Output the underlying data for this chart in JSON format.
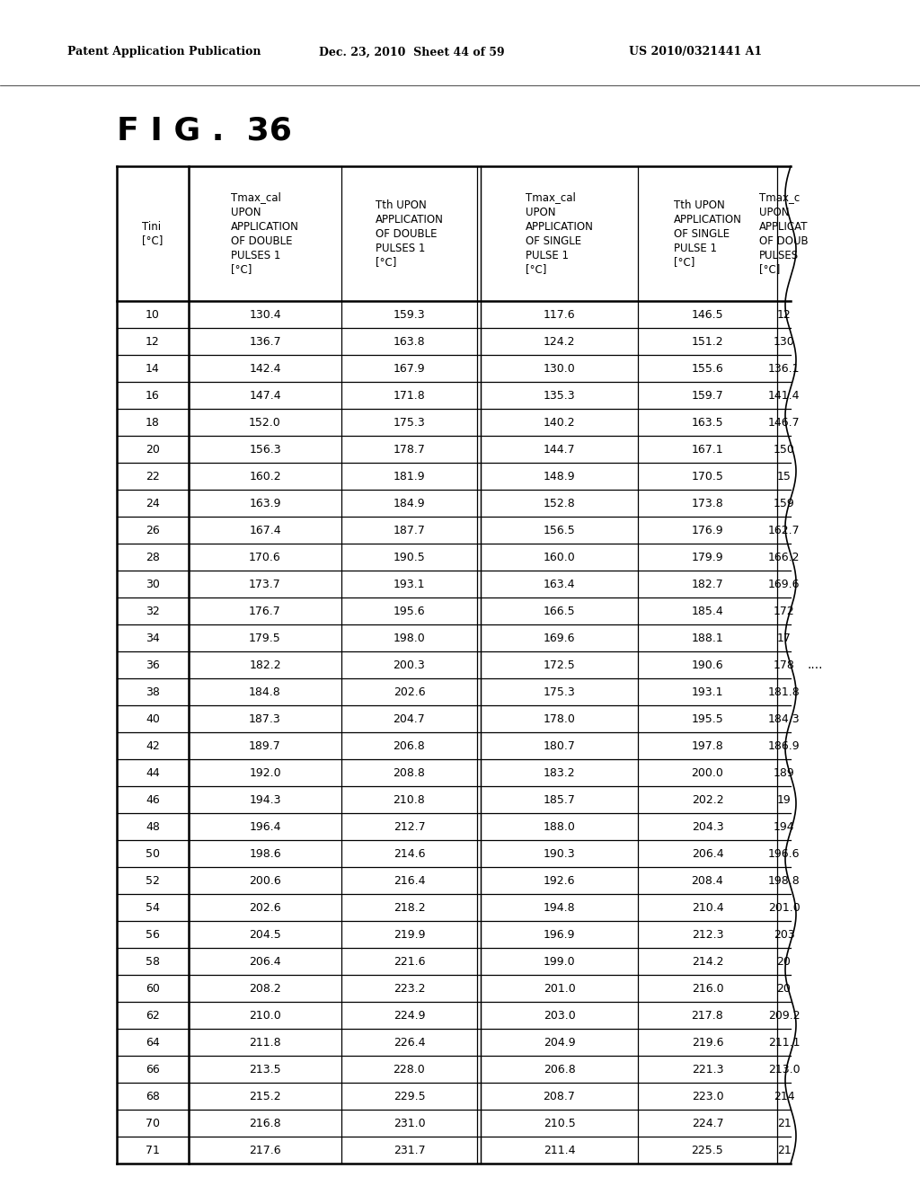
{
  "header_line1": "Patent Application Publication",
  "header_date": "Dec. 23, 2010  Sheet 44 of 59",
  "header_patent": "US 2010/0321441 A1",
  "figure_title": "F I G .  36",
  "col_headers": [
    "Tini\n[°C]",
    "Tmax_cal\nUPON\nAPPLICATION\nOF DOUBLE\nPULSES 1\n[°C]",
    "Tth UPON\nAPPLICATION\nOF DOUBLE\nPULSES 1\n[°C]",
    "Tmax_cal\nUPON\nAPPLICATION\nOF SINGLE\nPULSE 1\n[°C]",
    "Tth UPON\nAPPLICATION\nOF SINGLE\nPULSE 1\n[°C]",
    "Tmax_c\nUPON\nAPPLICAT\nOF DOUB\nPULSES\n[°C]"
  ],
  "rows": [
    [
      "10",
      "130.4",
      "159.3",
      "117.6",
      "146.5",
      "12"
    ],
    [
      "12",
      "136.7",
      "163.8",
      "124.2",
      "151.2",
      "130"
    ],
    [
      "14",
      "142.4",
      "167.9",
      "130.0",
      "155.6",
      "136.1"
    ],
    [
      "16",
      "147.4",
      "171.8",
      "135.3",
      "159.7",
      "141.4"
    ],
    [
      "18",
      "152.0",
      "175.3",
      "140.2",
      "163.5",
      "146.7"
    ],
    [
      "20",
      "156.3",
      "178.7",
      "144.7",
      "167.1",
      "150"
    ],
    [
      "22",
      "160.2",
      "181.9",
      "148.9",
      "170.5",
      "15"
    ],
    [
      "24",
      "163.9",
      "184.9",
      "152.8",
      "173.8",
      "159"
    ],
    [
      "26",
      "167.4",
      "187.7",
      "156.5",
      "176.9",
      "162.7"
    ],
    [
      "28",
      "170.6",
      "190.5",
      "160.0",
      "179.9",
      "166.2"
    ],
    [
      "30",
      "173.7",
      "193.1",
      "163.4",
      "182.7",
      "169.6"
    ],
    [
      "32",
      "176.7",
      "195.6",
      "166.5",
      "185.4",
      "172"
    ],
    [
      "34",
      "179.5",
      "198.0",
      "169.6",
      "188.1",
      "17"
    ],
    [
      "36",
      "182.2",
      "200.3",
      "172.5",
      "190.6",
      "178"
    ],
    [
      "38",
      "184.8",
      "202.6",
      "175.3",
      "193.1",
      "181.8"
    ],
    [
      "40",
      "187.3",
      "204.7",
      "178.0",
      "195.5",
      "184.3"
    ],
    [
      "42",
      "189.7",
      "206.8",
      "180.7",
      "197.8",
      "186.9"
    ],
    [
      "44",
      "192.0",
      "208.8",
      "183.2",
      "200.0",
      "189"
    ],
    [
      "46",
      "194.3",
      "210.8",
      "185.7",
      "202.2",
      "19"
    ],
    [
      "48",
      "196.4",
      "212.7",
      "188.0",
      "204.3",
      "194"
    ],
    [
      "50",
      "198.6",
      "214.6",
      "190.3",
      "206.4",
      "196.6"
    ],
    [
      "52",
      "200.6",
      "216.4",
      "192.6",
      "208.4",
      "198.8"
    ],
    [
      "54",
      "202.6",
      "218.2",
      "194.8",
      "210.4",
      "201.0"
    ],
    [
      "56",
      "204.5",
      "219.9",
      "196.9",
      "212.3",
      "203"
    ],
    [
      "58",
      "206.4",
      "221.6",
      "199.0",
      "214.2",
      "20"
    ],
    [
      "60",
      "208.2",
      "223.2",
      "201.0",
      "216.0",
      "20"
    ],
    [
      "62",
      "210.0",
      "224.9",
      "203.0",
      "217.8",
      "209.2"
    ],
    [
      "64",
      "211.8",
      "226.4",
      "204.9",
      "219.6",
      "211.1"
    ],
    [
      "66",
      "213.5",
      "228.0",
      "206.8",
      "221.3",
      "213.0"
    ],
    [
      "68",
      "215.2",
      "229.5",
      "208.7",
      "223.0",
      "214"
    ],
    [
      "70",
      "216.8",
      "231.0",
      "210.5",
      "224.7",
      "21"
    ],
    [
      "71",
      "217.6",
      "231.7",
      "211.4",
      "225.5",
      "21"
    ]
  ],
  "ellipsis_row": 13,
  "bg_color": "#ffffff",
  "text_color": "#000000"
}
